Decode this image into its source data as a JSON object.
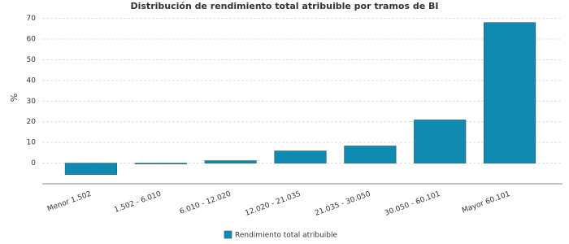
{
  "chart_data": {
    "type": "bar",
    "title": "Distribución de rendimiento total atribuible por tramos de BI",
    "y_label": "%",
    "categories": [
      "Menor 1.502",
      "1.502 - 6.010",
      "6.010 - 12.020",
      "12.020 - 21.035",
      "21.035 - 30.050",
      "30.050 - 60.101",
      "Mayor 60.101"
    ],
    "series": [
      {
        "name": "Rendimiento total atribuible",
        "color": "#118ab2",
        "values": [
          -5.5,
          -0.3,
          1.2,
          5.9,
          8.3,
          20.9,
          68
        ]
      }
    ],
    "ylim": [
      -10,
      73
    ],
    "yticks": [
      0,
      10,
      20,
      30,
      40,
      50,
      60,
      70
    ],
    "grid": true
  }
}
